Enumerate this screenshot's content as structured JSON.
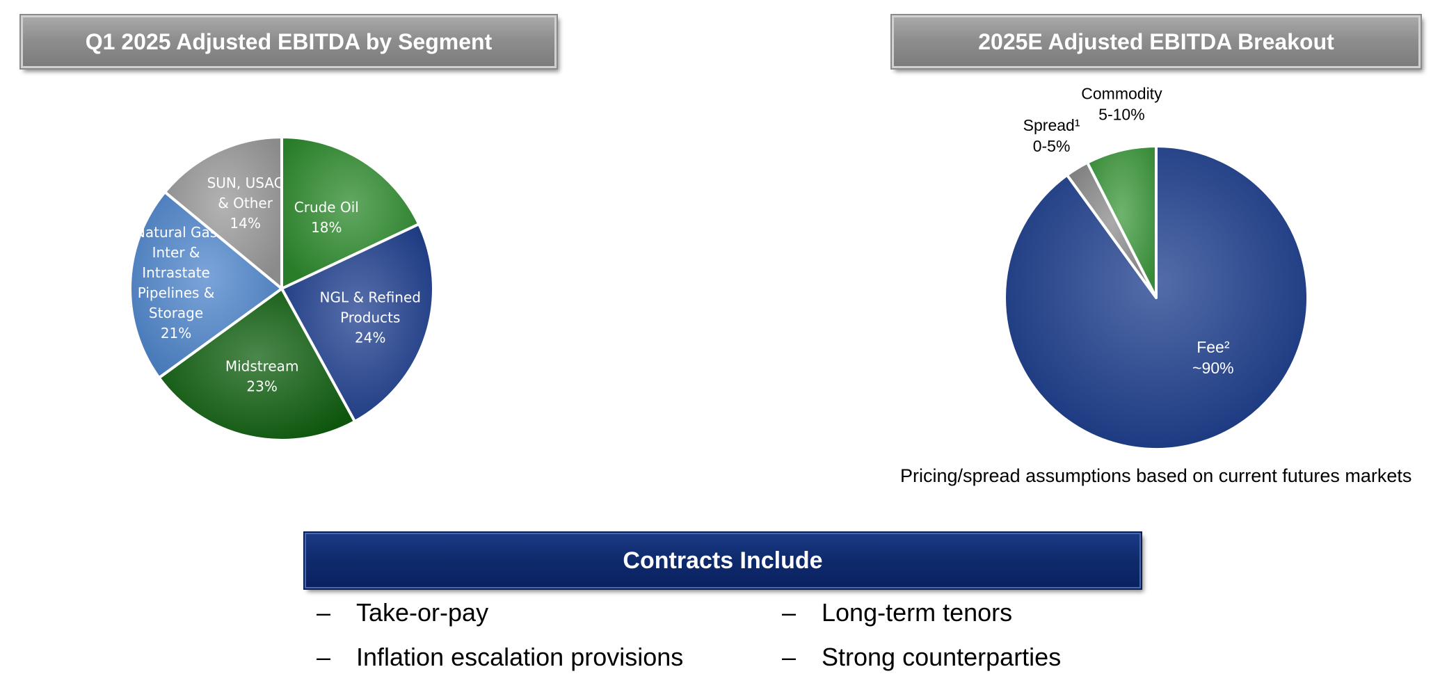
{
  "left_panel": {
    "title": "Q1 2025 Adjusted EBITDA by Segment"
  },
  "right_panel": {
    "title": "2025E Adjusted EBITDA Breakout",
    "note": "Pricing/spread assumptions based on current futures markets"
  },
  "contracts": {
    "title": "Contracts Include",
    "dash": "–",
    "items": [
      "Take-or-pay",
      "Long-term tenors",
      "Inflation escalation provisions",
      "Strong counterparties"
    ]
  },
  "chart_data": [
    {
      "type": "pie",
      "title": "Q1 2025 Adjusted EBITDA by Segment",
      "slices": [
        {
          "name": "Crude Oil",
          "label_lines": [
            "Crude Oil",
            "18%"
          ],
          "value": 18,
          "color": "#2e8b2e"
        },
        {
          "name": "NGL & Refined Products",
          "label_lines": [
            "NGL & Refined",
            "Products",
            "24%"
          ],
          "value": 24,
          "color": "#1f3f8f"
        },
        {
          "name": "Midstream",
          "label_lines": [
            "Midstream",
            "23%"
          ],
          "value": 23,
          "color": "#0f5f0f"
        },
        {
          "name": "Natural Gas Inter & Intrastate Pipelines & Storage",
          "label_lines": [
            "Natural Gas",
            "Inter &",
            "Intrastate",
            "Pipelines &",
            "Storage",
            "21%"
          ],
          "value": 21,
          "color": "#4f86cc"
        },
        {
          "name": "SUN, USAC & Other",
          "label_lines": [
            "SUN, USAC",
            "& Other",
            "14%"
          ],
          "value": 14,
          "color": "#9a9a9a"
        }
      ],
      "label_color": "#ffffff",
      "slice_border": "#ffffff"
    },
    {
      "type": "pie",
      "title": "2025E Adjusted EBITDA Breakout",
      "slices": [
        {
          "name": "Fee²",
          "label_lines": [
            "Fee²",
            "~90%"
          ],
          "value": 90,
          "color": "#1b3c8c"
        },
        {
          "name": "Spread¹",
          "label_lines": [
            "Spread¹",
            "0-5%"
          ],
          "value": 2.5,
          "color": "#8c8c8c"
        },
        {
          "name": "Commodity",
          "label_lines": [
            "Commodity",
            "5-10%"
          ],
          "value": 7.5,
          "color": "#3f9a3f"
        }
      ],
      "label_color_inside": "#ffffff",
      "label_color_outside": "#000000",
      "slice_border": "#ffffff"
    }
  ]
}
